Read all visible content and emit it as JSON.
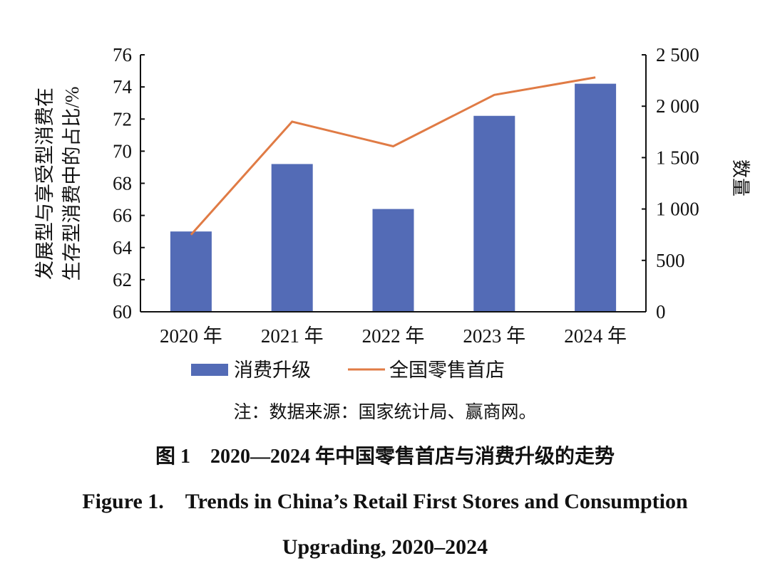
{
  "chart_data": {
    "type": "bar",
    "categories": [
      "2020 年",
      "2021 年",
      "2022 年",
      "2023 年",
      "2024 年"
    ],
    "series": [
      {
        "name": "消费升级",
        "type": "bar",
        "axis": "left",
        "color": "#536bb6",
        "values": [
          65.0,
          69.2,
          66.4,
          72.2,
          74.2
        ]
      },
      {
        "name": "全国零售首店",
        "type": "line",
        "axis": "right",
        "color": "#e07b45",
        "values": [
          750,
          1850,
          1610,
          2110,
          2280
        ]
      }
    ],
    "ylabel_lines": [
      "发展型与享受型消费在",
      "生存型消费中的占比/%"
    ],
    "y2label": "数量",
    "ylim": [
      60,
      76
    ],
    "yticks": [
      60,
      62,
      64,
      66,
      68,
      70,
      72,
      74,
      76
    ],
    "y2lim": [
      0,
      2500
    ],
    "y2ticks": [
      0,
      500,
      1000,
      1500,
      2000,
      2500
    ],
    "y2ticklabels": [
      "0",
      "500",
      "1 000",
      "1 500",
      "2 000",
      "2 500"
    ],
    "legend_position": "bottom",
    "grid": false
  },
  "note": "注：数据来源：国家统计局、赢商网。",
  "caption_cn": "图 1　2020—2024 年中国零售首店与消费升级的走势",
  "caption_en_1": "Figure 1.　Trends in China’s Retail First Stores and Consumption",
  "caption_en_2": "Upgrading, 2020–2024"
}
